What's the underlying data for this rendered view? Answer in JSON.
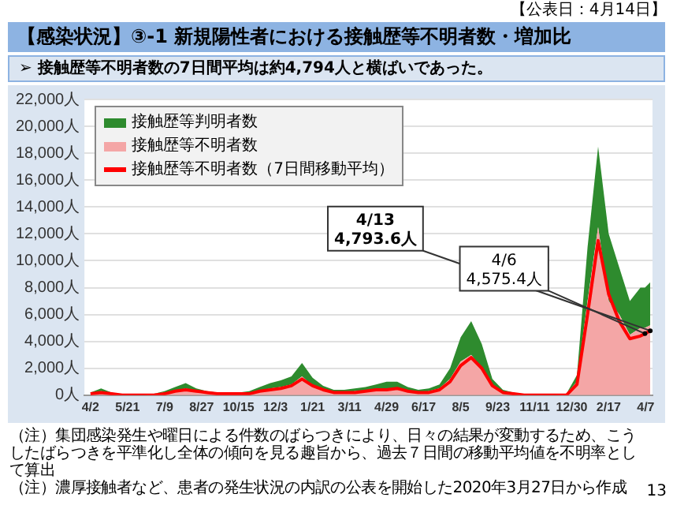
{
  "chart_data": {
    "type": "area",
    "title": "【感染状況】③-1 新規陽性者における接触歴等不明者数・増加比",
    "subtitle": "➢ 接触歴等不明者数の7日間平均は約4,794人と横ばいであった。",
    "annotations": [
      "【公表日：4月14日】",
      {
        "text": "4/13\n4,793.6人",
        "x": "2022-04-13",
        "y": 4793.6
      },
      {
        "text": "4/6\n4,575.4人",
        "x": "2022-04-06",
        "y": 4575.4
      },
      "（注）集団感染発生や曜日による件数のばらつきにより、日々の結果が変動するため、こうしたばらつきを平準化し全体の傾向を見る趣旨から、過去７日間の移動平均値を不明率として算出",
      "（注）濃厚接触者など、患者の発生状況の内訳の公表を開始した2020年3月27日から作成",
      "13"
    ],
    "x": [
      "2020-04-02",
      "2020-04-16",
      "2020-04-30",
      "2020-05-14",
      "2020-05-28",
      "2020-06-11",
      "2020-06-25",
      "2020-07-09",
      "2020-07-23",
      "2020-08-06",
      "2020-08-20",
      "2020-09-03",
      "2020-09-17",
      "2020-10-01",
      "2020-10-15",
      "2020-10-29",
      "2020-11-12",
      "2020-11-26",
      "2020-12-10",
      "2020-12-24",
      "2021-01-07",
      "2021-01-21",
      "2021-02-04",
      "2021-02-18",
      "2021-03-04",
      "2021-03-18",
      "2021-04-01",
      "2021-04-15",
      "2021-04-29",
      "2021-05-13",
      "2021-05-27",
      "2021-06-10",
      "2021-06-24",
      "2021-07-08",
      "2021-07-22",
      "2021-08-05",
      "2021-08-19",
      "2021-09-02",
      "2021-09-16",
      "2021-09-30",
      "2021-10-14",
      "2021-10-28",
      "2021-11-11",
      "2021-11-25",
      "2021-12-09",
      "2021-12-23",
      "2022-01-06",
      "2022-01-20",
      "2022-02-03",
      "2022-02-17",
      "2022-03-03",
      "2022-03-17",
      "2022-03-31",
      "2022-04-06",
      "2022-04-13"
    ],
    "stacked": true,
    "series": [
      {
        "name": "接触歴等不明者数",
        "color": "#f4a6a6",
        "values": [
          100,
          300,
          100,
          0,
          0,
          0,
          100,
          200,
          300,
          500,
          300,
          200,
          100,
          100,
          100,
          200,
          300,
          500,
          600,
          800,
          1400,
          700,
          400,
          200,
          200,
          300,
          300,
          400,
          500,
          500,
          300,
          200,
          300,
          500,
          1200,
          2500,
          3000,
          2000,
          600,
          200,
          100,
          0,
          0,
          0,
          0,
          100,
          1000,
          7000,
          12500,
          7000,
          6000,
          4500,
          5000,
          5000,
          5200
        ]
      },
      {
        "name": "接触歴等判明者数",
        "color": "#2e8b2e",
        "values": [
          100,
          200,
          100,
          0,
          0,
          0,
          0,
          100,
          300,
          400,
          200,
          100,
          100,
          100,
          100,
          100,
          300,
          400,
          500,
          600,
          1000,
          600,
          300,
          200,
          200,
          200,
          300,
          400,
          500,
          500,
          300,
          200,
          200,
          300,
          800,
          1800,
          2500,
          1800,
          600,
          200,
          100,
          0,
          0,
          0,
          0,
          0,
          500,
          4000,
          6000,
          5000,
          3500,
          2500,
          3000,
          3000,
          3200
        ]
      },
      {
        "name": "接触歴等不明者数（7日間移動平均）",
        "type": "line",
        "color": "#ff0000",
        "values": [
          100,
          200,
          100,
          0,
          0,
          0,
          0,
          100,
          300,
          400,
          300,
          200,
          100,
          100,
          100,
          100,
          300,
          400,
          500,
          700,
          1200,
          700,
          400,
          200,
          200,
          200,
          300,
          400,
          400,
          500,
          300,
          200,
          200,
          400,
          1000,
          2200,
          2800,
          2000,
          700,
          200,
          100,
          0,
          0,
          0,
          0,
          0,
          800,
          6000,
          11500,
          7500,
          5500,
          4200,
          4400,
          4575.4,
          4793.6
        ]
      }
    ],
    "xlim": [
      "2020-03-25",
      "2022-04-16"
    ],
    "xticks": [
      {
        "value": "2020-04-02",
        "label": "4/2"
      },
      {
        "value": "2020-05-21",
        "label": "5/21"
      },
      {
        "value": "2020-07-09",
        "label": "7/9"
      },
      {
        "value": "2020-08-27",
        "label": "8/27"
      },
      {
        "value": "2020-10-15",
        "label": "10/15"
      },
      {
        "value": "2020-12-03",
        "label": "12/3"
      },
      {
        "value": "2021-01-21",
        "label": "1/21"
      },
      {
        "value": "2021-03-11",
        "label": "3/11"
      },
      {
        "value": "2021-04-29",
        "label": "4/29"
      },
      {
        "value": "2021-06-17",
        "label": "6/17"
      },
      {
        "value": "2021-08-05",
        "label": "8/5"
      },
      {
        "value": "2021-09-23",
        "label": "9/23"
      },
      {
        "value": "2021-11-11",
        "label": "11/11"
      },
      {
        "value": "2021-12-30",
        "label": "12/30"
      },
      {
        "value": "2022-02-17",
        "label": "2/17"
      },
      {
        "value": "2022-04-07",
        "label": "4/7"
      }
    ],
    "ylim": [
      0,
      22000
    ],
    "yticks": [
      {
        "value": 0,
        "label": "0人"
      },
      {
        "value": 2000,
        "label": "2,000人"
      },
      {
        "value": 4000,
        "label": "4,000人"
      },
      {
        "value": 6000,
        "label": "6,000人"
      },
      {
        "value": 8000,
        "label": "8,000人"
      },
      {
        "value": 10000,
        "label": "10,000人"
      },
      {
        "value": 12000,
        "label": "12,000人"
      },
      {
        "value": 14000,
        "label": "14,000人"
      },
      {
        "value": 16000,
        "label": "16,000人"
      },
      {
        "value": 18000,
        "label": "18,000人"
      },
      {
        "value": 20000,
        "label": "20,000人"
      },
      {
        "value": 22000,
        "label": "22,000人"
      }
    ],
    "grid": "y",
    "legend": "top left",
    "marker": "none",
    "line_style": "solid"
  }
}
